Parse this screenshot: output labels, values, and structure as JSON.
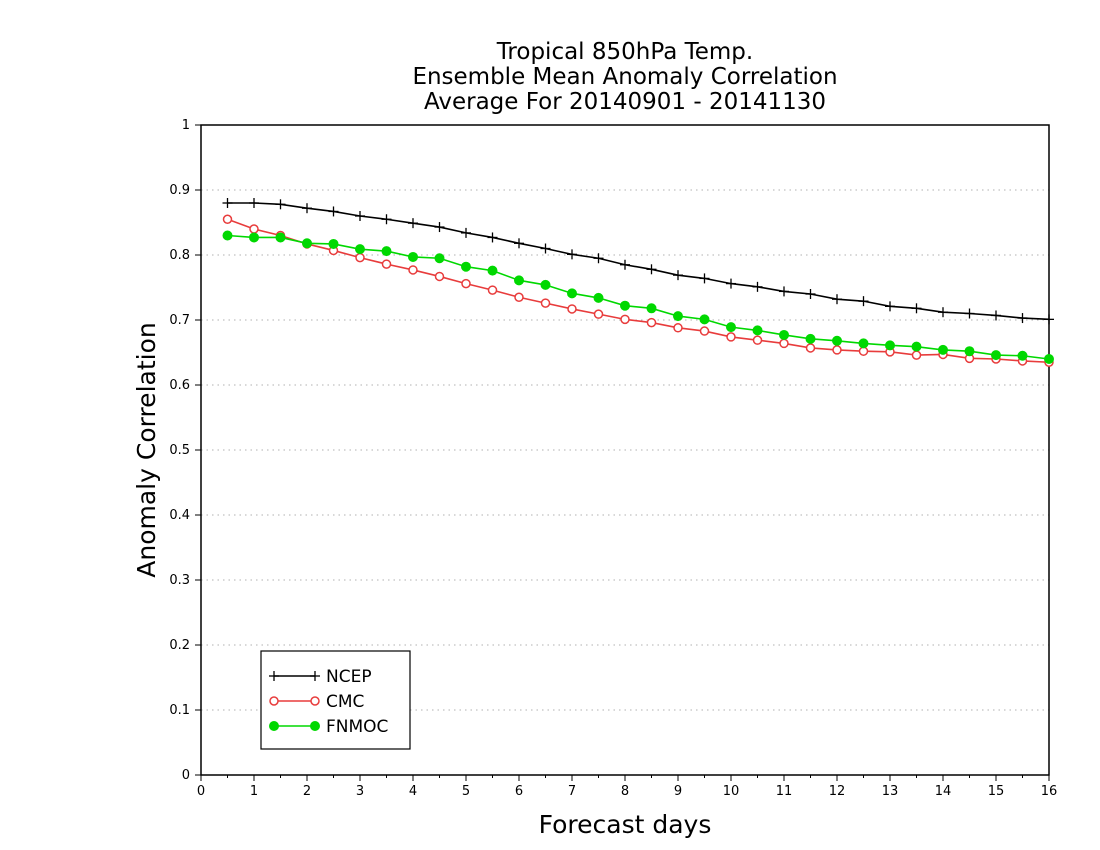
{
  "chart_data": {
    "type": "line",
    "title": [
      "Tropical 850hPa Temp.",
      "Ensemble Mean Anomaly Correlation",
      "Average For 20140901 - 20141130"
    ],
    "xlabel": "Forecast days",
    "ylabel": "Anomaly Correlation",
    "xlim": [
      0,
      16
    ],
    "ylim": [
      0,
      1
    ],
    "xticks": [
      "0",
      "1",
      "2",
      "3",
      "4",
      "5",
      "6",
      "7",
      "8",
      "9",
      "10",
      "11",
      "12",
      "13",
      "14",
      "15",
      "16"
    ],
    "yticks": [
      "0",
      "0.1",
      "0.2",
      "0.3",
      "0.4",
      "0.5",
      "0.6",
      "0.7",
      "0.8",
      "0.9",
      "1"
    ],
    "grid": "horizontal dotted",
    "legend_position": "bottom-left",
    "x": [
      0.5,
      1,
      1.5,
      2,
      2.5,
      3,
      3.5,
      4,
      4.5,
      5,
      5.5,
      6,
      6.5,
      7,
      7.5,
      8,
      8.5,
      9,
      9.5,
      10,
      10.5,
      11,
      11.5,
      12,
      12.5,
      13,
      13.5,
      14,
      14.5,
      15,
      15.5,
      16
    ],
    "series": [
      {
        "name": "NCEP",
        "color": "#000000",
        "marker": "plus",
        "values": [
          0.88,
          0.88,
          0.878,
          0.872,
          0.867,
          0.86,
          0.855,
          0.849,
          0.843,
          0.834,
          0.827,
          0.818,
          0.81,
          0.801,
          0.795,
          0.785,
          0.778,
          0.769,
          0.764,
          0.756,
          0.751,
          0.744,
          0.74,
          0.732,
          0.729,
          0.721,
          0.718,
          0.712,
          0.71,
          0.707,
          0.703,
          0.701
        ]
      },
      {
        "name": "CMC",
        "color": "#e83c3c",
        "marker": "open-circle",
        "values": [
          0.855,
          0.84,
          0.83,
          0.817,
          0.807,
          0.796,
          0.786,
          0.777,
          0.767,
          0.756,
          0.746,
          0.735,
          0.726,
          0.717,
          0.709,
          0.701,
          0.696,
          0.688,
          0.683,
          0.674,
          0.669,
          0.664,
          0.657,
          0.654,
          0.652,
          0.651,
          0.646,
          0.647,
          0.641,
          0.64,
          0.637,
          0.635
        ]
      },
      {
        "name": "FNMOC",
        "color": "#00d800",
        "marker": "filled-circle",
        "values": [
          0.83,
          0.827,
          0.827,
          0.818,
          0.817,
          0.809,
          0.806,
          0.797,
          0.795,
          0.782,
          0.776,
          0.761,
          0.754,
          0.741,
          0.734,
          0.722,
          0.718,
          0.706,
          0.701,
          0.689,
          0.684,
          0.677,
          0.671,
          0.668,
          0.664,
          0.661,
          0.659,
          0.654,
          0.652,
          0.646,
          0.645,
          0.64
        ]
      }
    ]
  }
}
